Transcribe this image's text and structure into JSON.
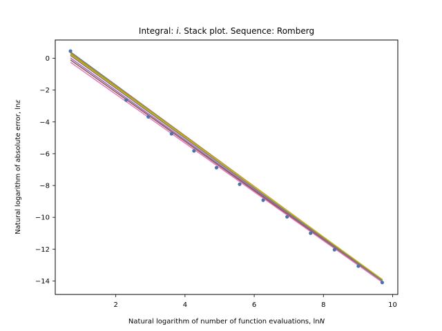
{
  "chart_data": {
    "type": "line",
    "title": {
      "prefix": "Integral: ",
      "italic": "i",
      "suffix": ". Stack plot. Sequence: Romberg"
    },
    "xlabel": {
      "text": "Natural logarithm of number of function evaluations, ln",
      "italic": "N"
    },
    "ylabel": {
      "text": "Natural logarithm of absolute error, ln",
      "italic": "ε"
    },
    "xlim": [
      0.25,
      10.15
    ],
    "ylim": [
      -14.85,
      1.15
    ],
    "xticks": [
      2,
      4,
      6,
      8,
      10
    ],
    "yticks": [
      0,
      -2,
      -4,
      -6,
      -8,
      -10,
      -12,
      -14
    ],
    "ytick_labels": [
      "0",
      "−2",
      "−4",
      "−6",
      "−8",
      "−10",
      "−12",
      "−14"
    ],
    "grid": false,
    "points": {
      "color": "#4c72b0",
      "x": [
        0.69,
        2.3,
        2.94,
        3.61,
        4.26,
        4.91,
        5.58,
        6.26,
        6.95,
        7.63,
        8.32,
        9.01,
        9.7
      ],
      "y": [
        0.45,
        -2.63,
        -3.68,
        -4.75,
        -5.82,
        -6.88,
        -7.92,
        -8.92,
        -9.97,
        -11.0,
        -12.04,
        -13.07,
        -14.1
      ]
    },
    "series": [
      {
        "color": "#1f77b4",
        "x": [
          0.69,
          9.7
        ],
        "y": [
          0.4,
          -13.95
        ]
      },
      {
        "color": "#ff7f0e",
        "x": [
          0.69,
          9.7
        ],
        "y": [
          0.35,
          -13.92
        ]
      },
      {
        "color": "#2ca02c",
        "x": [
          0.69,
          9.7
        ],
        "y": [
          0.28,
          -13.93
        ]
      },
      {
        "color": "#d62728",
        "x": [
          0.69,
          9.7
        ],
        "y": [
          0.18,
          -13.98
        ]
      },
      {
        "color": "#9467bd",
        "x": [
          0.69,
          9.7
        ],
        "y": [
          0.02,
          -14.02
        ]
      },
      {
        "color": "#8c564b",
        "x": [
          0.69,
          9.7
        ],
        "y": [
          -0.1,
          -14.05
        ]
      },
      {
        "color": "#e377c2",
        "x": [
          0.69,
          9.7
        ],
        "y": [
          -0.25,
          -14.08
        ]
      },
      {
        "color": "#7f7f7f",
        "x": [
          0.69,
          9.7
        ],
        "y": [
          0.2,
          -14.0
        ]
      },
      {
        "color": "#bcbd22",
        "x": [
          0.69,
          9.7
        ],
        "y": [
          0.25,
          -13.9
        ]
      }
    ]
  }
}
